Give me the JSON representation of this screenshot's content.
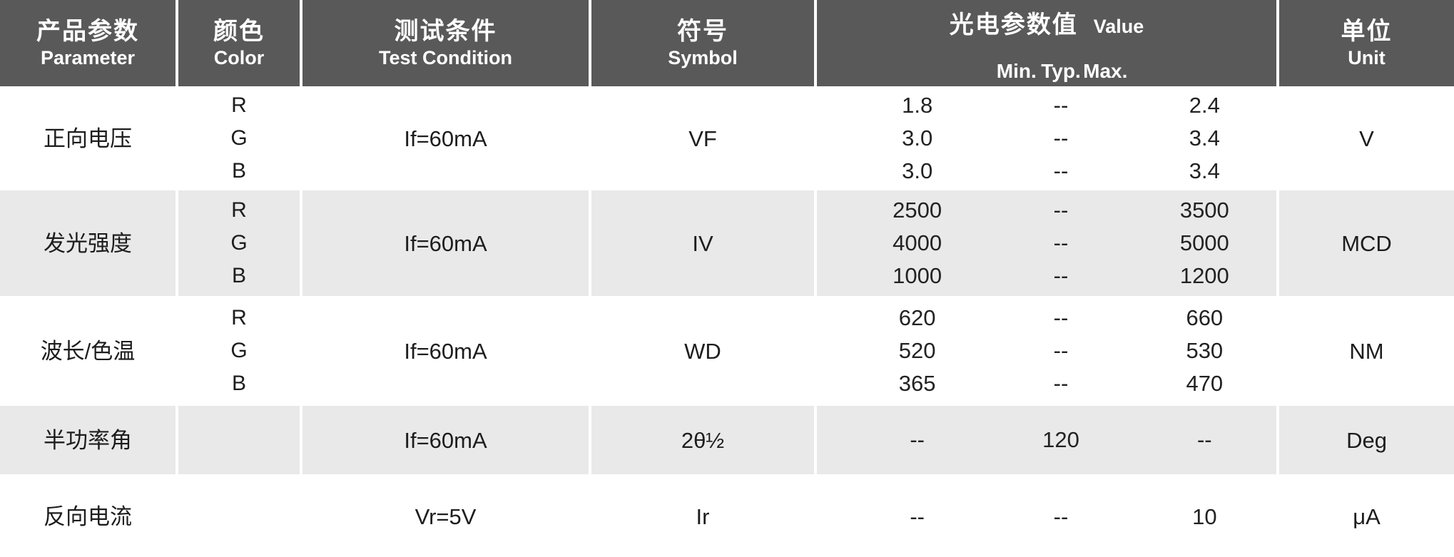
{
  "table": {
    "header": {
      "columns": [
        {
          "zh": "产品参数",
          "en": "Parameter"
        },
        {
          "zh": "颜色",
          "en": "Color"
        },
        {
          "zh": "测试条件",
          "en": "Test Condition"
        },
        {
          "zh": "符号",
          "en": "Symbol"
        },
        {
          "zh": "光电参数值",
          "en": "Value"
        },
        {
          "zh": "单位",
          "en": "Unit"
        }
      ],
      "value_subcolumns": [
        "Min.",
        "Typ.",
        "Max."
      ]
    },
    "rows": [
      {
        "parameter": "正向电压",
        "colors": [
          "R",
          "G",
          "B"
        ],
        "condition": "If=60mA",
        "symbol": "VF",
        "min": [
          "1.8",
          "3.0",
          "3.0"
        ],
        "typ": [
          "--",
          "--",
          "--"
        ],
        "max": [
          "2.4",
          "3.4",
          "3.4"
        ],
        "unit": "V"
      },
      {
        "parameter": "发光强度",
        "colors": [
          "R",
          "G",
          "B"
        ],
        "condition": "If=60mA",
        "symbol": "IV",
        "min": [
          "2500",
          "4000",
          "1000"
        ],
        "typ": [
          "--",
          "--",
          "--"
        ],
        "max": [
          "3500",
          "5000",
          "1200"
        ],
        "unit": "MCD"
      },
      {
        "parameter": "波长/色温",
        "colors": [
          "R",
          "G",
          "B"
        ],
        "condition": "If=60mA",
        "symbol": "WD",
        "min": [
          "620",
          "520",
          "365"
        ],
        "typ": [
          "--",
          "--",
          "--"
        ],
        "max": [
          "660",
          "530",
          "470"
        ],
        "unit": "NM"
      },
      {
        "parameter": "半功率角",
        "colors": [],
        "condition": "If=60mA",
        "symbol": "2θ½",
        "min": [
          "--"
        ],
        "typ": [
          "120"
        ],
        "max": [
          "--"
        ],
        "unit": "Deg"
      },
      {
        "parameter": "反向电流",
        "colors": [],
        "condition": "Vr=5V",
        "symbol": "Ir",
        "min": [
          "--"
        ],
        "typ": [
          "--"
        ],
        "max": [
          "10"
        ],
        "unit": "μA"
      }
    ]
  },
  "colors": {
    "header_bg": "#595959",
    "header_text": "#ffffff",
    "row_alt_bg": "#e9e9e9",
    "row_bg": "#ffffff",
    "body_text": "#1d1d1d"
  }
}
